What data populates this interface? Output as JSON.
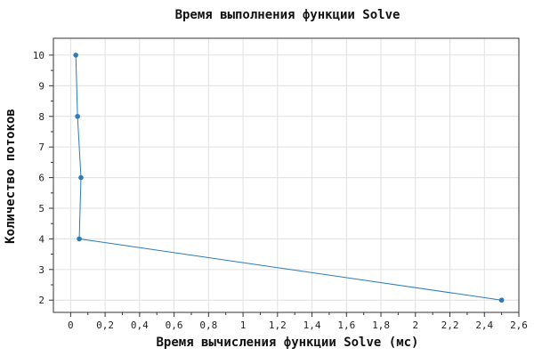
{
  "chart_data": {
    "type": "line",
    "title": "Время выполнения функции Solve",
    "xlabel": "Время вычисления функции Solve (мс)",
    "ylabel": "Количество потоков",
    "xlim": [
      -0.1,
      2.6
    ],
    "ylim": [
      1.6,
      10.55
    ],
    "x_ticks": [
      0,
      0.2,
      0.4,
      0.6,
      0.8,
      1,
      1.2,
      1.4,
      1.6,
      1.8,
      2,
      2.2,
      2.4,
      2.6
    ],
    "x_tick_labels": [
      "0",
      "0,2",
      "0,4",
      "0,6",
      "0,8",
      "1",
      "1,2",
      "1,4",
      "1,6",
      "1,8",
      "2",
      "2,2",
      "2,4",
      "2,6"
    ],
    "y_ticks": [
      2,
      3,
      4,
      5,
      6,
      7,
      8,
      9,
      10
    ],
    "y_tick_labels": [
      "2",
      "3",
      "4",
      "5",
      "6",
      "7",
      "8",
      "9",
      "10"
    ],
    "grid": true,
    "color": "#2b7bba",
    "series": [
      {
        "x": [
          0.03,
          0.04,
          0.06,
          0.05,
          2.5
        ],
        "y": [
          10,
          8,
          6,
          4,
          2
        ]
      }
    ]
  }
}
